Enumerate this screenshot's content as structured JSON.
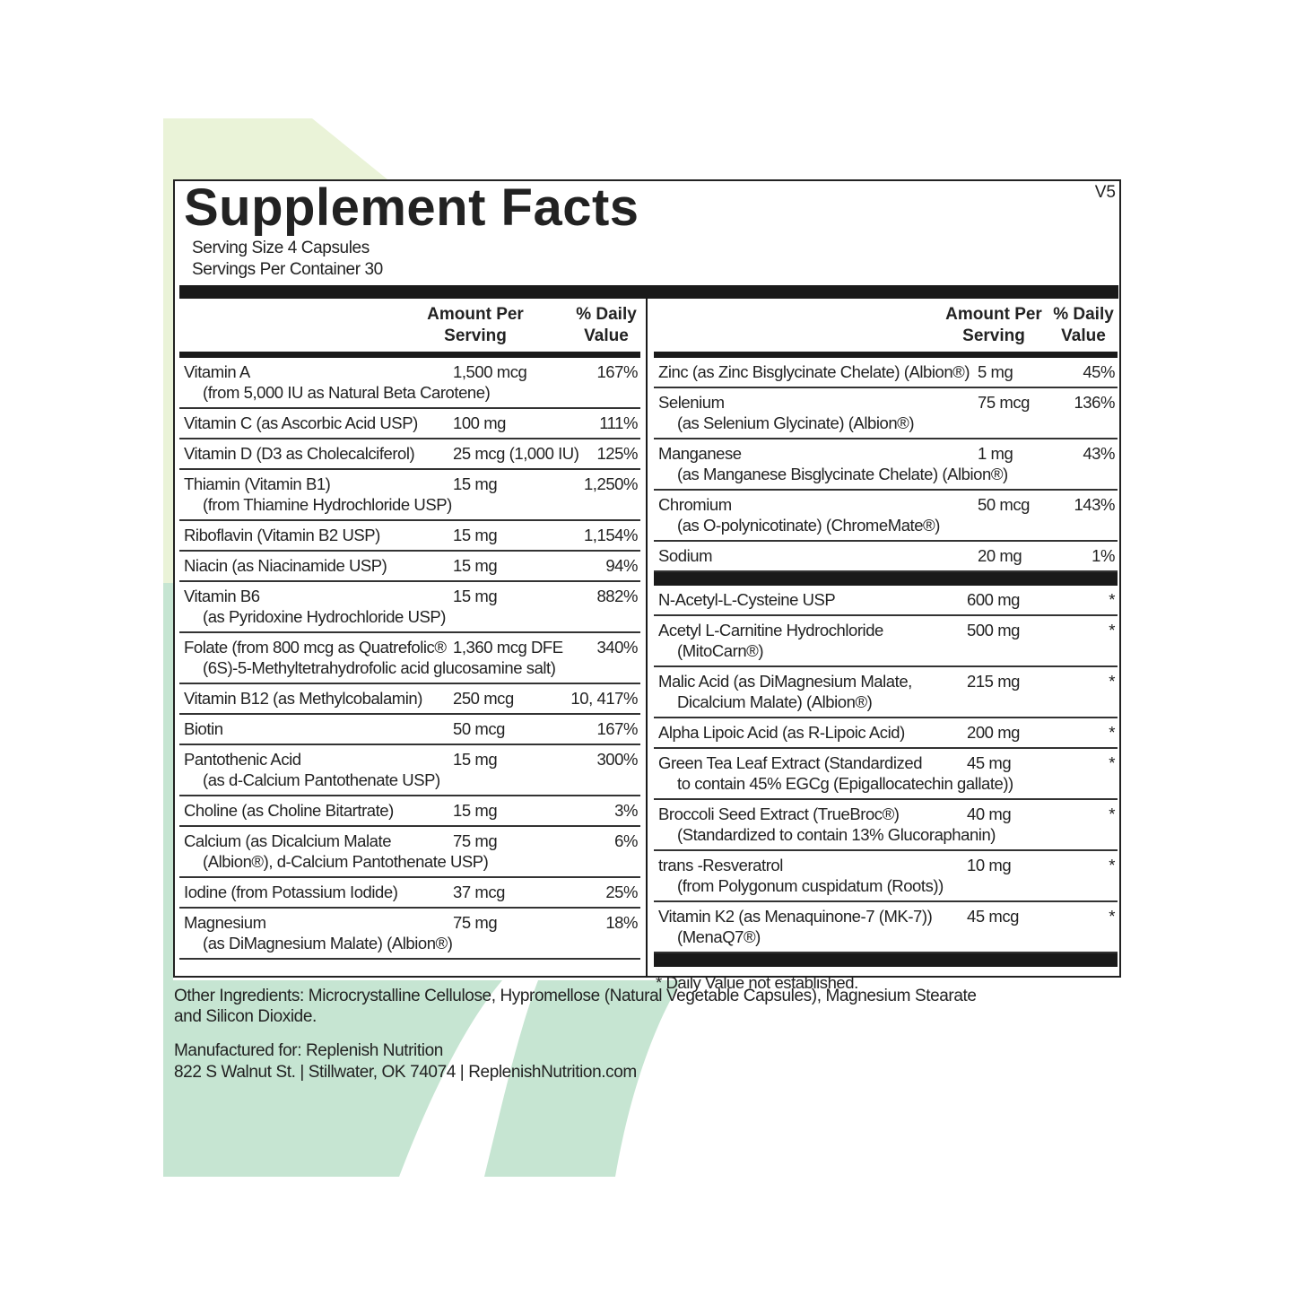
{
  "header": {
    "title": "Supplement Facts",
    "version": "V5",
    "serving_size": "Serving Size  4 Capsules",
    "servings_per_container": "Servings Per Container  30"
  },
  "left": {
    "amount_header": "Amount Per Serving",
    "dv_header": "% Daily Value",
    "rows": [
      {
        "name": "Vitamin A",
        "amount": "1,500 mcg",
        "dv": "167%",
        "sub": "(from 5,000 IU as Natural Beta Carotene)"
      },
      {
        "name": "Vitamin C (as Ascorbic Acid USP)",
        "amount": "100 mg",
        "dv": "111%"
      },
      {
        "name": "Vitamin D (D3 as Cholecalciferol)",
        "amount": "25 mcg (1,000 IU)",
        "dv": "125%"
      },
      {
        "name": "Thiamin (Vitamin B1)",
        "amount": "15 mg",
        "dv": "1,250%",
        "sub": "(from Thiamine Hydrochloride USP)"
      },
      {
        "name": "Riboflavin (Vitamin B2 USP)",
        "amount": "15 mg",
        "dv": "1,154%"
      },
      {
        "name": "Niacin (as Niacinamide USP)",
        "amount": "15 mg",
        "dv": "94%"
      },
      {
        "name": "Vitamin B6",
        "amount": "15 mg",
        "dv": "882%",
        "sub": "(as Pyridoxine Hydrochloride USP)"
      },
      {
        "name": "Folate (from 800 mcg as Quatrefolic®",
        "amount": "1,360 mcg DFE",
        "dv": "340%",
        "sub": "(6S)-5-Methyltetrahydrofolic acid glucosamine salt)"
      },
      {
        "name": "Vitamin B12 (as Methylcobalamin)",
        "amount": "250 mcg",
        "dv": "10, 417%"
      },
      {
        "name": "Biotin",
        "amount": "50 mcg",
        "dv": "167%"
      },
      {
        "name": "Pantothenic Acid",
        "amount": "15 mg",
        "dv": "300%",
        "sub": "(as d-Calcium Pantothenate USP)"
      },
      {
        "name": "Choline (as Choline Bitartrate)",
        "amount": "15 mg",
        "dv": "3%"
      },
      {
        "name": "Calcium (as Dicalcium Malate",
        "amount": "75 mg",
        "dv": "6%",
        "sub": "(Albion®), d-Calcium Pantothenate USP)"
      },
      {
        "name": "Iodine (from Potassium Iodide)",
        "amount": "37 mcg",
        "dv": "25%"
      },
      {
        "name": "Magnesium",
        "amount": "75 mg",
        "dv": "18%",
        "sub": "(as DiMagnesium Malate) (Albion®)"
      }
    ]
  },
  "right": {
    "amount_header": "Amount Per Serving",
    "dv_header": "% Daily Value",
    "rows": [
      {
        "name": "Zinc (as Zinc Bisglycinate Chelate) (Albion®)",
        "amount": "5 mg",
        "dv": "45%"
      },
      {
        "name": "Selenium",
        "amount": "75 mcg",
        "dv": "136%",
        "sub": "(as Selenium Glycinate) (Albion®)"
      },
      {
        "name": "Manganese",
        "amount": "1 mg",
        "dv": "43%",
        "sub": "(as Manganese Bisglycinate Chelate) (Albion®)"
      },
      {
        "name": "Chromium",
        "amount": "50 mcg",
        "dv": "143%",
        "sub": "(as O-polynicotinate) (ChromeMate®)"
      },
      {
        "name": "Sodium",
        "amount": "20 mg",
        "dv": "1%"
      }
    ],
    "other_rows": [
      {
        "name": "N-Acetyl-L-Cysteine USP",
        "amount": "600 mg",
        "dv": "*"
      },
      {
        "name": "Acetyl L-Carnitine Hydrochloride",
        "amount": "500 mg",
        "dv": "*",
        "sub": "(MitoCarn®)"
      },
      {
        "name": "Malic Acid (as DiMagnesium Malate,",
        "amount": "215 mg",
        "dv": "*",
        "sub": "Dicalcium Malate) (Albion®)"
      },
      {
        "name": "Alpha Lipoic Acid (as R-Lipoic Acid)",
        "amount": "200 mg",
        "dv": "*"
      },
      {
        "name": "Green Tea Leaf Extract (Standardized",
        "amount": "45 mg",
        "dv": "*",
        "sub": "to contain 45% EGCg (Epigallocatechin gallate))"
      },
      {
        "name": "Broccoli Seed Extract (TrueBroc®)",
        "amount": "40 mg",
        "dv": "*",
        "sub": "(Standardized to contain 13% Glucoraphanin)"
      },
      {
        "name": "trans -Resveratrol",
        "amount": "10 mg",
        "dv": "*",
        "sub": "(from Polygonum cuspidatum (Roots))"
      },
      {
        "name": "Vitamin K2 (as Menaquinone-7 (MK-7))",
        "amount": "45 mcg",
        "dv": "*",
        "sub": "(MenaQ7®)"
      }
    ],
    "footnote": "*  Daily Value not established."
  },
  "other_ingredients": "Other Ingredients: Microcrystalline Cellulose, Hypromellose (Natural Vegetable Capsules), Magnesium Stearate and Silicon Dioxide.",
  "manufacturer": {
    "line1": "Manufactured for: Replenish Nutrition",
    "line2": "822 S Walnut St. | Stillwater, OK 74074 | ReplenishNutrition.com"
  }
}
